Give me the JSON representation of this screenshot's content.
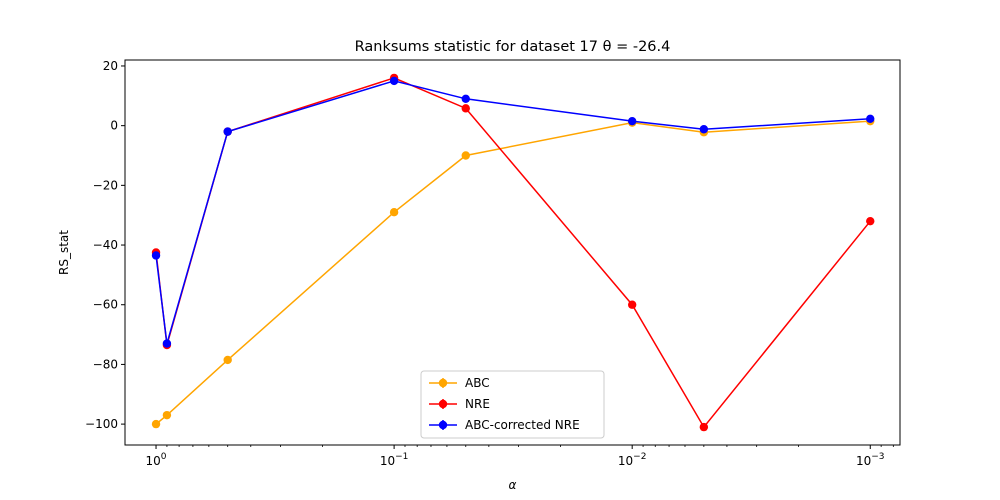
{
  "chart_data": {
    "type": "line",
    "title": "Ranksums statistic for dataset 17 θ = -26.4",
    "xlabel": "α",
    "ylabel": "RS_stat",
    "xscale": "log",
    "x_inverted": true,
    "xlim": [
      1.35,
      0.00075
    ],
    "ylim": [
      -107,
      22
    ],
    "x": [
      1.0,
      0.9,
      0.5,
      0.1,
      0.05,
      0.01,
      0.005,
      0.001
    ],
    "x_ticks": [
      {
        "value": 1,
        "label_base": "10",
        "label_exp": "0"
      },
      {
        "value": 0.1,
        "label_base": "10",
        "label_exp": "−1"
      },
      {
        "value": 0.01,
        "label_base": "10",
        "label_exp": "−2"
      },
      {
        "value": 0.001,
        "label_base": "10",
        "label_exp": "−3"
      }
    ],
    "y_ticks": [
      {
        "value": 20,
        "label": "20"
      },
      {
        "value": 0,
        "label": "0"
      },
      {
        "value": -20,
        "label": "−20"
      },
      {
        "value": -40,
        "label": "−40"
      },
      {
        "value": -60,
        "label": "−60"
      },
      {
        "value": -80,
        "label": "−80"
      },
      {
        "value": -100,
        "label": "−100"
      }
    ],
    "series": [
      {
        "name": "ABC",
        "color": "#ffa500",
        "values": [
          -100.0,
          -97.0,
          -78.5,
          -29.0,
          -10.0,
          1.0,
          -2.2,
          1.5
        ]
      },
      {
        "name": "NRE",
        "color": "#ff0000",
        "values": [
          -42.5,
          -73.5,
          -2.0,
          16.0,
          5.8,
          -60.0,
          -101.0,
          -32.0
        ]
      },
      {
        "name": "ABC-corrected NRE",
        "color": "#0000ff",
        "values": [
          -43.5,
          -73.0,
          -2.0,
          15.0,
          9.0,
          1.5,
          -1.2,
          2.3
        ]
      }
    ],
    "legend_position": "lower-center",
    "grid": false
  }
}
